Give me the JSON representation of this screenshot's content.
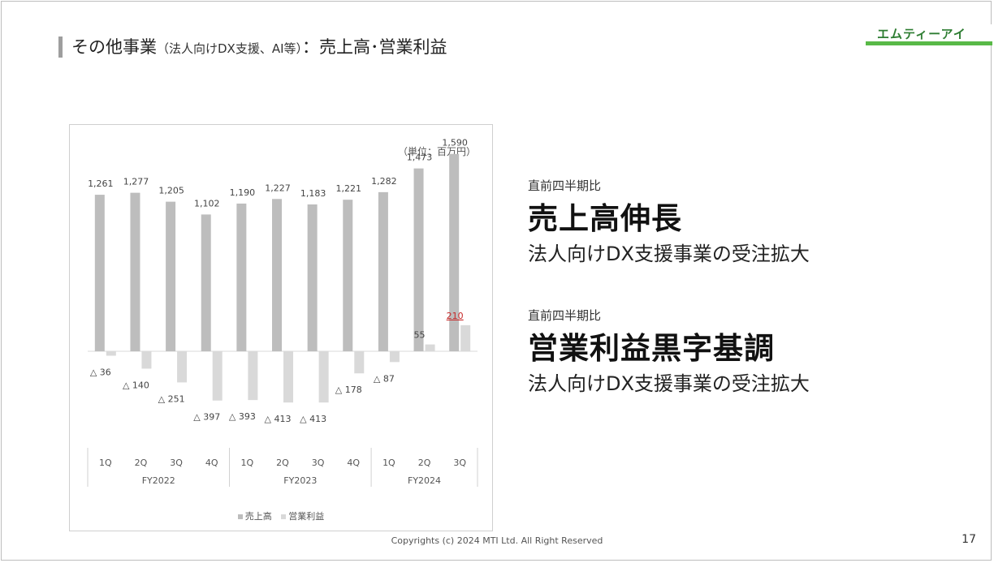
{
  "slide": {
    "title_main": "その他事業",
    "title_sub": "（法人向けDX支援、AI等）",
    "title_suffix": "：売上高･営業利益",
    "logo_text": "エムティーアイ",
    "footer": "Copyrights (c) 2024 MTI Ltd. All Right Reserved",
    "page_number": "17"
  },
  "panel": {
    "block1": {
      "compare_label": "直前四半期比",
      "headline": "売上高伸長",
      "description": "法人向けDX支援事業の受注拡大"
    },
    "block2": {
      "compare_label": "直前四半期比",
      "headline": "営業利益黒字基調",
      "description": "法人向けDX支援事業の受注拡大"
    }
  },
  "chart_data": {
    "type": "bar",
    "unit_note": "（単位：百万円）",
    "categories": [
      "1Q",
      "2Q",
      "3Q",
      "4Q",
      "1Q",
      "2Q",
      "3Q",
      "4Q",
      "1Q",
      "2Q",
      "3Q"
    ],
    "groups": [
      {
        "label": "FY2022",
        "count": 4
      },
      {
        "label": "FY2023",
        "count": 4
      },
      {
        "label": "FY2024",
        "count": 3
      }
    ],
    "series": [
      {
        "name": "売上高",
        "color": "#bdbdbd",
        "values": [
          1261,
          1277,
          1205,
          1102,
          1190,
          1227,
          1183,
          1221,
          1282,
          1473,
          1590
        ],
        "labels": [
          "1,261",
          "1,277",
          "1,205",
          "1,102",
          "1,190",
          "1,227",
          "1,183",
          "1,221",
          "1,282",
          "1,473",
          "1,590"
        ]
      },
      {
        "name": "営業利益",
        "color": "#d9d9d9",
        "values": [
          -36,
          -140,
          -251,
          -397,
          -393,
          -413,
          -413,
          -178,
          -87,
          55,
          210
        ],
        "labels": [
          "△ 36",
          "△ 140",
          "△ 251",
          "△ 397",
          "△ 393",
          "△ 413",
          "△ 413",
          "△ 178",
          "△ 87",
          "55",
          "210"
        ],
        "highlight_color": "#c62828",
        "highlight_index": 10
      }
    ],
    "legend_position": "bottom"
  }
}
